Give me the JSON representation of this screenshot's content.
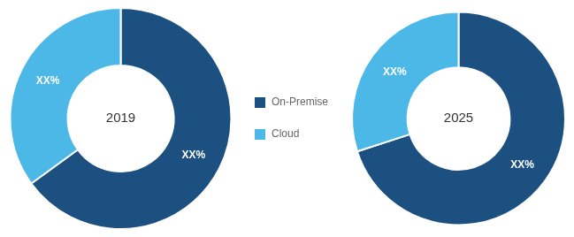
{
  "chart_data": [
    {
      "type": "doughnut",
      "title": "2019",
      "categories": [
        "On-Premise",
        "Cloud"
      ],
      "values": [
        65,
        35
      ],
      "value_labels": [
        "XX%",
        "XX%"
      ],
      "colors": [
        "#1b5080",
        "#4bb8e8"
      ],
      "data_labels": true,
      "legend": "right"
    },
    {
      "type": "doughnut",
      "title": "2025",
      "categories": [
        "On-Premise",
        "Cloud"
      ],
      "values": [
        70,
        30
      ],
      "value_labels": [
        "XX%",
        "XX%"
      ],
      "colors": [
        "#1b5080",
        "#4bb8e8"
      ],
      "data_labels": true
    }
  ]
}
